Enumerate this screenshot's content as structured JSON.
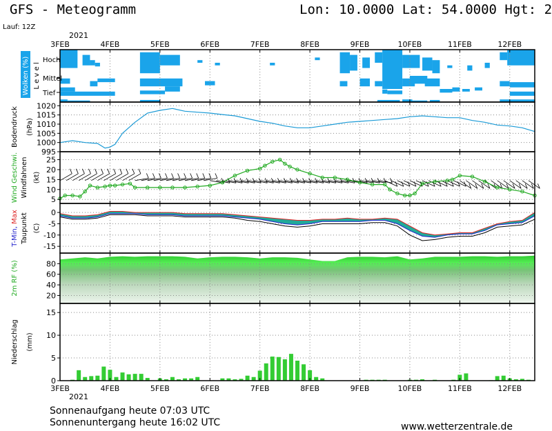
{
  "header": {
    "title": "GFS - Meteogramm",
    "coords": "Lon: 10.0000 Lat: 54.0000 Hgt: 2",
    "run": "Lauf: 12Z",
    "year": "2021"
  },
  "footer": {
    "sunrise": "Sonnenaufgang heute 07:03 UTC",
    "sunset": "Sonnenuntergang heute 16:02 UTC",
    "site": "www.wetterzentrale.de",
    "year": "2021"
  },
  "colors": {
    "cloud": "#1aa4ea",
    "pressure": "#1a9ad6",
    "wind": "#22aa22",
    "tmin": "#2222cc",
    "tmax": "#dd2222",
    "band": "#22aa99",
    "rh": "#22dd22",
    "precip": "#33cc33"
  },
  "chart_data": [
    {
      "type": "heatmap",
      "panel": "clouds",
      "ylabel": "Wolken (%)",
      "levels": [
        "Hoch",
        "Mittel",
        "Tief"
      ],
      "level_axis": "L e v e l",
      "x_days": [
        "3FEB",
        "4FEB",
        "5FEB",
        "6FEB",
        "7FEB",
        "8FEB",
        "9FEB",
        "10FEB",
        "11FEB",
        "12FEB"
      ],
      "blocks": [
        [
          3.0,
          3.35,
          0,
          0.35
        ],
        [
          3.45,
          3.6,
          0.1,
          0.3
        ],
        [
          3.6,
          3.7,
          0.2,
          0.3
        ],
        [
          3.7,
          3.8,
          0.25,
          0.32
        ],
        [
          4.6,
          5.0,
          0.05,
          0.45
        ],
        [
          5.0,
          5.4,
          0.1,
          0.3
        ],
        [
          5.75,
          5.85,
          0.2,
          0.25
        ],
        [
          6.1,
          6.2,
          0.25,
          0.3
        ],
        [
          7.2,
          7.3,
          0.25,
          0.3
        ],
        [
          8.1,
          8.2,
          0.15,
          0.2
        ],
        [
          8.6,
          8.8,
          0.05,
          0.45
        ],
        [
          8.8,
          8.95,
          0.1,
          0.4
        ],
        [
          9.05,
          9.2,
          0.15,
          0.35
        ],
        [
          9.3,
          9.45,
          0.05,
          0.25
        ],
        [
          9.45,
          9.85,
          0,
          0.5
        ],
        [
          9.85,
          10.2,
          0.1,
          0.35
        ],
        [
          10.25,
          10.45,
          0.15,
          0.4
        ],
        [
          10.45,
          10.6,
          0.2,
          0.45
        ],
        [
          10.75,
          10.85,
          0.3,
          0.35
        ],
        [
          11.15,
          11.25,
          0.3,
          0.4
        ],
        [
          11.5,
          11.6,
          0.25,
          0.35
        ],
        [
          11.8,
          11.95,
          0.05,
          0.2
        ],
        [
          11.95,
          12.5,
          0,
          0.3
        ],
        [
          3.0,
          3.2,
          0.55,
          0.65
        ],
        [
          3.6,
          3.75,
          0.6,
          0.7
        ],
        [
          3.75,
          4.1,
          0.55,
          0.62
        ],
        [
          4.6,
          5.45,
          0.55,
          0.7
        ],
        [
          5.1,
          5.4,
          0.7,
          0.8
        ],
        [
          5.9,
          6.1,
          0.6,
          0.68
        ],
        [
          8.6,
          8.75,
          0.6,
          0.7
        ],
        [
          9.0,
          9.2,
          0.55,
          0.7
        ],
        [
          9.3,
          9.45,
          0.6,
          0.7
        ],
        [
          9.45,
          9.85,
          0.5,
          0.75
        ],
        [
          9.85,
          10.1,
          0.55,
          0.7
        ],
        [
          10.0,
          10.35,
          0.5,
          0.65
        ],
        [
          10.3,
          10.6,
          0.55,
          0.7
        ],
        [
          11.8,
          12.0,
          0.6,
          0.7
        ],
        [
          12.0,
          12.5,
          0.62,
          0.72
        ],
        [
          3.0,
          3.3,
          0.72,
          0.8
        ],
        [
          3.0,
          4.1,
          0.8,
          0.88
        ],
        [
          4.6,
          5.1,
          0.78,
          0.85
        ],
        [
          9.45,
          9.55,
          0.76,
          0.84
        ],
        [
          9.55,
          9.85,
          0.78,
          0.85
        ],
        [
          10.6,
          10.85,
          0.75,
          0.82
        ],
        [
          10.85,
          11.0,
          0.72,
          0.8
        ],
        [
          11.05,
          11.2,
          0.75,
          0.8
        ],
        [
          11.3,
          11.45,
          0.72,
          0.78
        ],
        [
          12.0,
          12.5,
          0.8,
          0.88
        ],
        [
          3.0,
          3.15,
          0.95,
          1.0
        ],
        [
          3.15,
          3.6,
          0.97,
          1.0
        ],
        [
          4.6,
          5.0,
          0.96,
          1.0
        ],
        [
          9.35,
          9.8,
          0.96,
          1.0
        ],
        [
          9.85,
          10.05,
          0.95,
          1.0
        ],
        [
          10.05,
          10.35,
          0.97,
          1.0
        ],
        [
          10.4,
          10.6,
          0.96,
          1.0
        ],
        [
          11.8,
          12.5,
          0.95,
          1.0
        ]
      ]
    },
    {
      "type": "line",
      "panel": "pressure",
      "ylabel": "Bodendruck",
      "unit": "(hPa)",
      "ylim": [
        995,
        1022
      ],
      "yticks": [
        995,
        1000,
        1005,
        1010,
        1015,
        1020
      ],
      "x": [
        3.0,
        3.25,
        3.5,
        3.75,
        3.9,
        4.0,
        4.1,
        4.25,
        4.5,
        4.75,
        5.0,
        5.25,
        5.5,
        5.75,
        6.0,
        6.25,
        6.5,
        6.75,
        7.0,
        7.25,
        7.5,
        7.75,
        8.0,
        8.25,
        8.5,
        8.75,
        9.0,
        9.25,
        9.5,
        9.75,
        10.0,
        10.25,
        10.5,
        10.75,
        11.0,
        11.25,
        11.5,
        11.75,
        12.0,
        12.25,
        12.5
      ],
      "values": [
        1000,
        1001,
        1000,
        999.5,
        997,
        997.5,
        999,
        1005,
        1011,
        1016,
        1017.5,
        1018.5,
        1017,
        1016.5,
        1016,
        1015.2,
        1014.5,
        1013,
        1011.5,
        1010.5,
        1009,
        1008,
        1008,
        1009,
        1010,
        1011,
        1011.5,
        1012,
        1012.5,
        1013,
        1014,
        1014.5,
        1014,
        1013.5,
        1013.5,
        1012,
        1011,
        1009.5,
        1009,
        1008,
        1006
      ]
    },
    {
      "type": "line",
      "panel": "wind",
      "ylabel": "Wind Geschwi.",
      "ylabel2": "Windfahnen",
      "unit": "(kt)",
      "ylim": [
        3,
        29
      ],
      "yticks": [
        5,
        10,
        15,
        20,
        25
      ],
      "x": [
        3.0,
        3.1,
        3.25,
        3.4,
        3.5,
        3.6,
        3.75,
        3.9,
        4.0,
        4.1,
        4.25,
        4.4,
        4.5,
        4.75,
        5.0,
        5.25,
        5.5,
        5.75,
        6.0,
        6.25,
        6.5,
        6.75,
        7.0,
        7.1,
        7.25,
        7.4,
        7.5,
        7.6,
        7.75,
        8.0,
        8.25,
        8.5,
        8.75,
        9.0,
        9.25,
        9.5,
        9.6,
        9.75,
        9.9,
        10.0,
        10.1,
        10.25,
        10.5,
        10.75,
        10.85,
        11.0,
        11.25,
        11.5,
        11.75,
        12.0,
        12.25,
        12.5
      ],
      "values": [
        5.5,
        7,
        7,
        6.5,
        9,
        12,
        11,
        11.5,
        12,
        12,
        12.5,
        13,
        11,
        11,
        11,
        11,
        11,
        11.5,
        12,
        13.5,
        17,
        19.5,
        20.5,
        22,
        24,
        25,
        23,
        21.5,
        20,
        18,
        16,
        16,
        15,
        13.5,
        12.5,
        12.5,
        10,
        8,
        7,
        7,
        8,
        13,
        14,
        14.5,
        15,
        17,
        16.5,
        14,
        11,
        10,
        9,
        7
      ]
    },
    {
      "type": "line",
      "panel": "temperature",
      "ylabel": "T-Min, Max",
      "ylabel2": "Taupunkt",
      "unit": "(C)",
      "ylim": [
        -18,
        4
      ],
      "yticks": [
        0,
        -5,
        -10,
        -15
      ],
      "x": [
        3.0,
        3.25,
        3.5,
        3.75,
        4.0,
        4.25,
        4.5,
        4.75,
        5.0,
        5.25,
        5.5,
        5.75,
        6.0,
        6.25,
        6.5,
        6.75,
        7.0,
        7.25,
        7.5,
        7.75,
        8.0,
        8.25,
        8.5,
        8.75,
        9.0,
        9.25,
        9.5,
        9.75,
        10.0,
        10.25,
        10.5,
        10.75,
        11.0,
        11.25,
        11.5,
        11.75,
        12.0,
        12.25,
        12.5
      ],
      "tmin": [
        -1.5,
        -2.5,
        -2.5,
        -2,
        -0.5,
        -0.5,
        -0.5,
        -1,
        -1,
        -1,
        -1.5,
        -1.5,
        -1.5,
        -1.5,
        -2,
        -2.5,
        -3,
        -4,
        -5,
        -5.5,
        -5,
        -4,
        -4,
        -4,
        -4,
        -3.5,
        -3.5,
        -5,
        -8,
        -10.5,
        -11,
        -10,
        -9.5,
        -9.5,
        -8,
        -5.5,
        -5,
        -4.5,
        -1.5
      ],
      "tmax": [
        -0.5,
        -1.5,
        -1.5,
        -1,
        0.5,
        0.5,
        0,
        0,
        0,
        0,
        -0.5,
        -0.5,
        -0.5,
        -0.5,
        -1,
        -1.5,
        -2,
        -2.5,
        -3,
        -3.5,
        -3.5,
        -3,
        -3,
        -2.5,
        -3,
        -3,
        -2.5,
        -3,
        -6,
        -9,
        -10,
        -9.5,
        -9,
        -9,
        -7,
        -5,
        -4,
        -3.5,
        0
      ],
      "dewpoint": [
        -2,
        -3,
        -3,
        -2.5,
        -1,
        -1,
        -1,
        -1.5,
        -1.5,
        -1.5,
        -2,
        -2,
        -2,
        -2,
        -2.5,
        -3.5,
        -4,
        -5,
        -6,
        -6.5,
        -6,
        -5,
        -5,
        -5,
        -5,
        -4.5,
        -4.5,
        -6,
        -10,
        -12.5,
        -12,
        -11,
        -10.5,
        -10.5,
        -9,
        -6.5,
        -6,
        -5.5,
        -3
      ]
    },
    {
      "type": "area",
      "panel": "humidity",
      "ylabel": "2m RF (%)",
      "ylim": [
        5,
        100
      ],
      "yticks": [
        20,
        40,
        60,
        80
      ],
      "x": [
        3.0,
        3.25,
        3.5,
        3.75,
        4.0,
        4.25,
        4.5,
        4.75,
        5.0,
        5.25,
        5.5,
        5.75,
        6.0,
        6.25,
        6.5,
        6.75,
        7.0,
        7.25,
        7.5,
        7.75,
        8.0,
        8.25,
        8.5,
        8.75,
        9.0,
        9.25,
        9.5,
        9.75,
        10.0,
        10.25,
        10.5,
        10.75,
        11.0,
        11.25,
        11.5,
        11.75,
        12.0,
        12.25,
        12.5
      ],
      "values": [
        88,
        90,
        92,
        90,
        93,
        94,
        93,
        94,
        94,
        94,
        93,
        90,
        92,
        93,
        93,
        92,
        90,
        92,
        92,
        91,
        88,
        85,
        85,
        92,
        93,
        93,
        92,
        94,
        88,
        90,
        93,
        93,
        93,
        94,
        94,
        93,
        94,
        94,
        95
      ]
    },
    {
      "type": "bar",
      "panel": "precipitation",
      "ylabel": "Niederschlag",
      "unit": "(mm)",
      "ylim": [
        0,
        17
      ],
      "yticks": [
        0,
        5,
        10,
        15
      ],
      "x": [
        3.25,
        3.375,
        3.5,
        3.625,
        3.75,
        3.875,
        4.0,
        4.125,
        4.25,
        4.375,
        4.5,
        4.625,
        4.75,
        5.0,
        5.125,
        5.25,
        5.375,
        5.5,
        5.625,
        5.75,
        6.25,
        6.375,
        6.5,
        6.625,
        6.75,
        6.875,
        7.0,
        7.125,
        7.25,
        7.375,
        7.5,
        7.625,
        7.75,
        7.875,
        8.0,
        8.125,
        8.25,
        9.125,
        9.25,
        9.375,
        9.5,
        10.0,
        10.125,
        10.25,
        10.5,
        10.875,
        11.0,
        11.125,
        11.625,
        11.75,
        11.875,
        12.0,
        12.125,
        12.25,
        12.375
      ],
      "values": [
        0.2,
        2.3,
        0.8,
        1.0,
        1.1,
        3.1,
        2.4,
        0.8,
        1.8,
        1.4,
        1.5,
        1.5,
        0.6,
        0.5,
        0.3,
        0.8,
        0.3,
        0.5,
        0.5,
        0.8,
        0.5,
        0.5,
        0.3,
        0.4,
        1.1,
        0.8,
        2.2,
        3.8,
        5.3,
        5.2,
        4.7,
        5.9,
        4.4,
        3.6,
        2.3,
        0.8,
        0.5,
        0.2,
        0.2,
        0.2,
        0.2,
        0.2,
        0.2,
        0.3,
        0.2,
        0.2,
        1.3,
        1.6,
        0.1,
        1.0,
        1.1,
        0.5,
        0.3,
        0.4,
        0.2
      ]
    }
  ]
}
